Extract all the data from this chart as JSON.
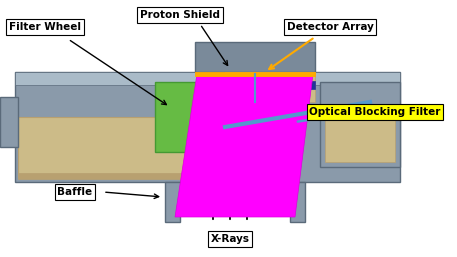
{
  "fig_width": 4.57,
  "fig_height": 2.57,
  "dpi": 100,
  "bg_color": "#ffffff",
  "labels": {
    "proton_shield": "Proton Shield",
    "filter_wheel": "Filter Wheel",
    "detector_array": "Detector Array",
    "optical_blocking_filter": "Optical Blocking Filter",
    "baffle": "Baffle",
    "xrays": "X-Rays"
  },
  "colors": {
    "magenta": "#ff00ff",
    "green": "#66bb44",
    "gray_body": "#8a9aaa",
    "gray_mid": "#7a8a9a",
    "gray_dark": "#5a6a7a",
    "gray_light": "#aabbc8",
    "tan": "#ccbb88",
    "tan_dark": "#b8a070",
    "blue_filter": "#5599cc",
    "orange_line": "#ffaa00",
    "dark_blue": "#223399",
    "obf_box_bg": "#ffff00",
    "black": "#000000",
    "white": "#ffffff"
  }
}
